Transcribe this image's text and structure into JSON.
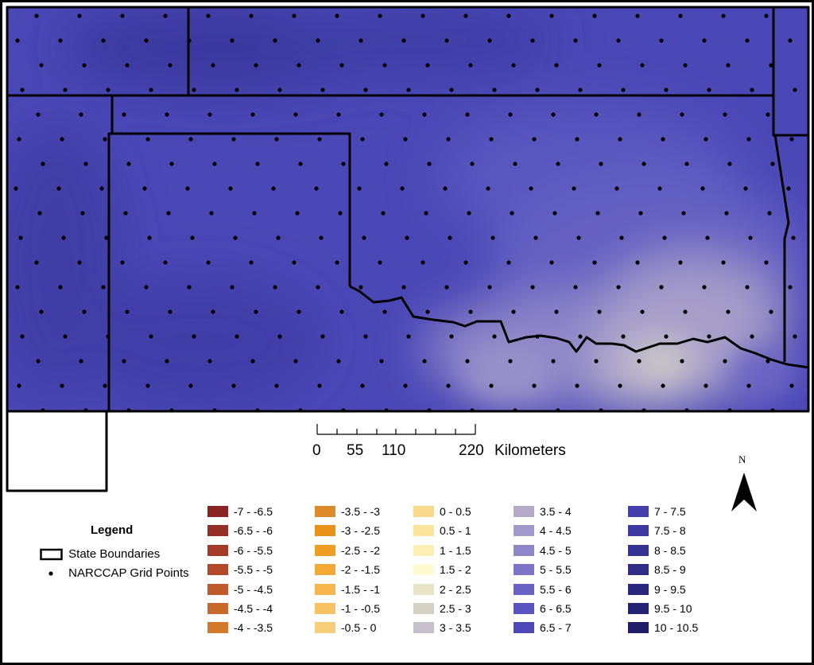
{
  "scale_bar": {
    "ticks": [
      "0",
      "55",
      "110",
      "220"
    ],
    "unit": "Kilometers"
  },
  "north_arrow": {
    "label": "N"
  },
  "legend": {
    "title": "Legend",
    "items": [
      {
        "label": "State Boundaries",
        "icon": "state-boundary-swatch"
      },
      {
        "label": "NARCCAP Grid Points",
        "icon": "grid-point-dot"
      }
    ]
  },
  "color_classes": [
    {
      "label": "-7 - -6.5",
      "color": "#8b2323"
    },
    {
      "label": "-6.5 - -6",
      "color": "#952e26"
    },
    {
      "label": "-6 - -5.5",
      "color": "#a33b28"
    },
    {
      "label": "-5.5 - -5",
      "color": "#b1492a"
    },
    {
      "label": "-5 - -4.5",
      "color": "#bf5a2b"
    },
    {
      "label": "-4.5 - -4",
      "color": "#c9692b"
    },
    {
      "label": "-4 - -3.5",
      "color": "#d4792b"
    },
    {
      "label": "-3.5 - -3",
      "color": "#dd8a2a"
    },
    {
      "label": "-3 - -2.5",
      "color": "#e8921a"
    },
    {
      "label": "-2.5 - -2",
      "color": "#ee9e22"
    },
    {
      "label": "-2 - -1.5",
      "color": "#f2a935"
    },
    {
      "label": "-1.5 - -1",
      "color": "#f5b64e"
    },
    {
      "label": "-1 - -0.5",
      "color": "#f7c265"
    },
    {
      "label": "-0.5 - 0",
      "color": "#f8cd7a"
    },
    {
      "label": "0 - 0.5",
      "color": "#fbd98a"
    },
    {
      "label": "0.5 - 1",
      "color": "#fde49d"
    },
    {
      "label": "1 - 1.5",
      "color": "#fdf0b4"
    },
    {
      "label": "1.5 - 2",
      "color": "#fefbd0"
    },
    {
      "label": "2 - 2.5",
      "color": "#e8e4c6"
    },
    {
      "label": "2.5 - 3",
      "color": "#d6d2c3"
    },
    {
      "label": "3 - 3.5",
      "color": "#c7c0cc"
    },
    {
      "label": "3.5 - 4",
      "color": "#b4aac8"
    },
    {
      "label": "4 - 4.5",
      "color": "#a198cb"
    },
    {
      "label": "4.5 - 5",
      "color": "#8e86c8"
    },
    {
      "label": "5 - 5.5",
      "color": "#7c74c6"
    },
    {
      "label": "5.5 - 6",
      "color": "#6a63c3"
    },
    {
      "label": "6 - 6.5",
      "color": "#5a54c0"
    },
    {
      "label": "6.5 - 7",
      "color": "#4c48b8"
    },
    {
      "label": "7 - 7.5",
      "color": "#4440ab"
    },
    {
      "label": "7.5 - 8",
      "color": "#3c3aa0"
    },
    {
      "label": "8 - 8.5",
      "color": "#353394"
    },
    {
      "label": "8.5 - 9",
      "color": "#2f2d88"
    },
    {
      "label": "9 - 9.5",
      "color": "#29277d"
    },
    {
      "label": "9.5 - 10",
      "color": "#242272"
    },
    {
      "label": "10 - 10.5",
      "color": "#1f1d68"
    }
  ]
}
